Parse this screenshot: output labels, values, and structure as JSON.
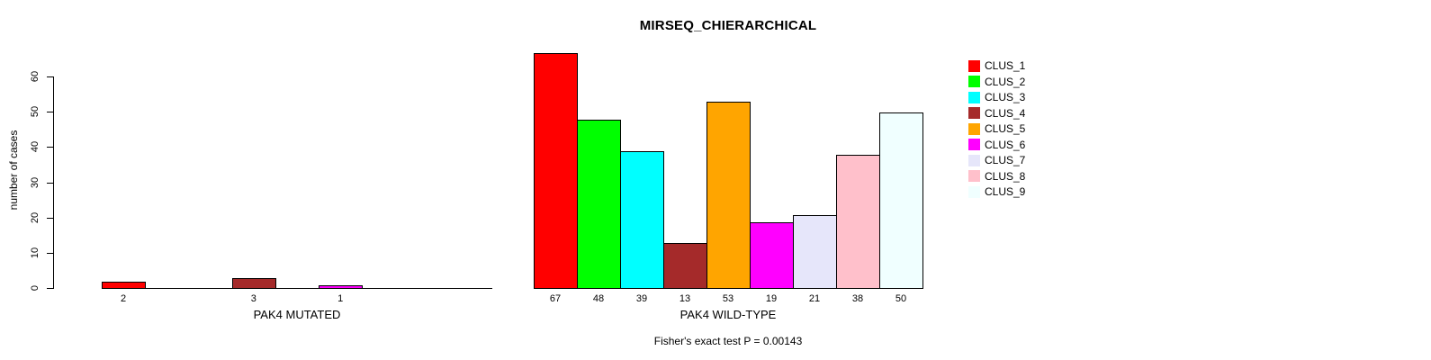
{
  "chart_data": {
    "type": "bar",
    "title": "MIRSEQ_CHIERARCHICAL",
    "ylabel": "number of cases",
    "ylim": [
      0,
      60
    ],
    "yticks": [
      0,
      10,
      20,
      30,
      40,
      50,
      60
    ],
    "grid": false,
    "legend_position": "right",
    "categories": [
      "CLUS_1",
      "CLUS_2",
      "CLUS_3",
      "CLUS_4",
      "CLUS_5",
      "CLUS_6",
      "CLUS_7",
      "CLUS_8",
      "CLUS_9"
    ],
    "legend": [
      {
        "label": "CLUS_1",
        "color": "#FF0000"
      },
      {
        "label": "CLUS_2",
        "color": "#00FF00"
      },
      {
        "label": "CLUS_3",
        "color": "#00FFFF"
      },
      {
        "label": "CLUS_4",
        "color": "#A52A2A"
      },
      {
        "label": "CLUS_5",
        "color": "#FFA500"
      },
      {
        "label": "CLUS_6",
        "color": "#FF00FF"
      },
      {
        "label": "CLUS_7",
        "color": "#E6E6FA"
      },
      {
        "label": "CLUS_8",
        "color": "#FFC0CB"
      },
      {
        "label": "CLUS_9",
        "color": "#F0FFFF"
      }
    ],
    "panels": [
      {
        "name": "mutated",
        "xlabel": "PAK4 MUTATED",
        "values": [
          2,
          0,
          0,
          3,
          0,
          1,
          0,
          0,
          0
        ],
        "bar_labels": [
          "2",
          "",
          "",
          "3",
          "",
          "1",
          "",
          "",
          ""
        ]
      },
      {
        "name": "wild-type",
        "xlabel": "PAK4 WILD-TYPE",
        "values": [
          67,
          48,
          39,
          13,
          53,
          19,
          21,
          38,
          50
        ],
        "bar_labels": [
          "67",
          "48",
          "39",
          "13",
          "53",
          "19",
          "21",
          "38",
          "50"
        ]
      }
    ],
    "annotation": "Fisher's exact test P = 0.00143"
  }
}
